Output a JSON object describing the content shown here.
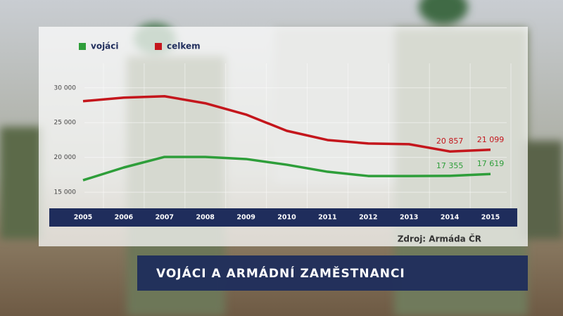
{
  "chart_data": {
    "type": "line",
    "title": "VOJÁCI A ARMÁDNÍ ZAMĚSTNANCI",
    "source": "Zdroj: Armáda ČR",
    "categories": [
      "2005",
      "2006",
      "2007",
      "2008",
      "2009",
      "2010",
      "2011",
      "2012",
      "2013",
      "2014",
      "2015"
    ],
    "series": [
      {
        "name": "vojáci",
        "color": "#2e9e3a",
        "values": [
          16720,
          18550,
          20070,
          20070,
          19770,
          18950,
          17940,
          17330,
          17330,
          17355,
          17619
        ],
        "value_labels": [
          null,
          null,
          null,
          null,
          null,
          null,
          null,
          null,
          null,
          "17 355",
          "17 619"
        ]
      },
      {
        "name": "celkem",
        "color": "#c4161c",
        "values": [
          28080,
          28590,
          28790,
          27780,
          26160,
          23820,
          22500,
          22000,
          21900,
          20857,
          21099
        ],
        "value_labels": [
          null,
          null,
          null,
          null,
          null,
          null,
          null,
          null,
          null,
          "20 857",
          "21 099"
        ]
      }
    ],
    "ylim": [
      14000,
      32000
    ],
    "yticks": [
      {
        "value": 15000,
        "label": "15 000"
      },
      {
        "value": 20000,
        "label": "20 000"
      },
      {
        "value": 25000,
        "label": "25 000"
      },
      {
        "value": 30000,
        "label": "30 000"
      }
    ],
    "grid": true
  }
}
